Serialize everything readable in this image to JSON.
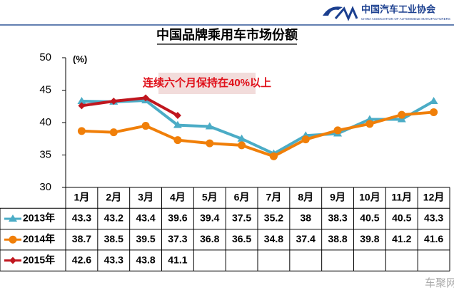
{
  "header": {
    "org": "中国汽车工业协会",
    "org_en": "CHINA ASSOCIATION OF AUTOMOBILE MANUFACTURERS"
  },
  "watermark": "车聚网",
  "chart_data": {
    "type": "line",
    "title": "中国品牌乘用车市场份额",
    "y_label": "(%)",
    "annotation": "连续六个月保持在40%以上",
    "categories": [
      "1月",
      "2月",
      "3月",
      "4月",
      "5月",
      "6月",
      "7月",
      "8月",
      "9月",
      "10月",
      "11月",
      "12月"
    ],
    "series": [
      {
        "name": "2013年",
        "color": "#4bacc6",
        "marker": "triangle",
        "values": [
          43.3,
          43.2,
          43.4,
          39.6,
          39.4,
          37.5,
          35.2,
          38,
          38.3,
          40.5,
          40.5,
          43.3
        ]
      },
      {
        "name": "2014年",
        "color": "#f07f09",
        "marker": "circle",
        "values": [
          38.7,
          38.5,
          39.5,
          37.3,
          36.8,
          36.5,
          34.8,
          37.4,
          38.8,
          39.8,
          41.2,
          41.6
        ]
      },
      {
        "name": "2015年",
        "color": "#c0161e",
        "marker": "diamond",
        "values": [
          42.6,
          43.3,
          43.8,
          41.1,
          null,
          null,
          null,
          null,
          null,
          null,
          null,
          null
        ]
      }
    ],
    "ylim": [
      30,
      50
    ],
    "yticks": [
      30,
      35,
      40,
      45,
      50
    ]
  }
}
